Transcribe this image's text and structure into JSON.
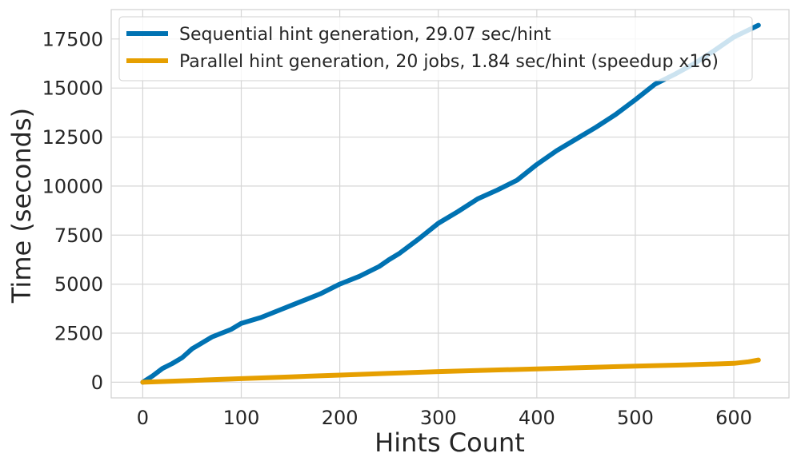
{
  "chart_data": {
    "type": "line",
    "title": "",
    "xlabel": "Hints Count",
    "ylabel": "Time (seconds)",
    "xlim": [
      -32,
      656
    ],
    "ylim": [
      -800,
      19000
    ],
    "x_ticks": [
      0,
      100,
      200,
      300,
      400,
      500,
      600
    ],
    "x_tick_labels": [
      "0",
      "100",
      "200",
      "300",
      "400",
      "500",
      "600"
    ],
    "y_ticks": [
      0,
      2500,
      5000,
      7500,
      10000,
      12500,
      15000,
      17500
    ],
    "y_tick_labels": [
      "0",
      "2500",
      "5000",
      "7500",
      "10000",
      "12500",
      "15000",
      "17500"
    ],
    "grid": true,
    "legend_position": "top-left",
    "series": [
      {
        "name": "Sequential hint generation, 29.07 sec/hint",
        "color": "#0072b2",
        "x": [
          0,
          10,
          20,
          30,
          40,
          50,
          60,
          70,
          80,
          90,
          100,
          120,
          140,
          160,
          180,
          200,
          220,
          240,
          250,
          260,
          280,
          300,
          320,
          340,
          360,
          380,
          400,
          420,
          440,
          460,
          480,
          500,
          520,
          540,
          560,
          580,
          600,
          625
        ],
        "y": [
          0,
          320,
          700,
          950,
          1250,
          1700,
          2000,
          2300,
          2500,
          2700,
          3000,
          3300,
          3700,
          4100,
          4500,
          5000,
          5400,
          5900,
          6250,
          6550,
          7300,
          8100,
          8700,
          9350,
          9800,
          10300,
          11100,
          11800,
          12400,
          13000,
          13650,
          14400,
          15200,
          15700,
          16250,
          16900,
          17600,
          18200
        ]
      },
      {
        "name": "Parallel hint generation, 20 jobs, 1.84 sec/hint (speedup x16)",
        "color": "#e69f00",
        "x": [
          0,
          50,
          100,
          150,
          200,
          250,
          300,
          350,
          400,
          450,
          500,
          550,
          600,
          615,
          625
        ],
        "y": [
          0,
          90,
          180,
          270,
          360,
          450,
          540,
          610,
          680,
          750,
          820,
          880,
          960,
          1040,
          1130
        ]
      }
    ]
  }
}
